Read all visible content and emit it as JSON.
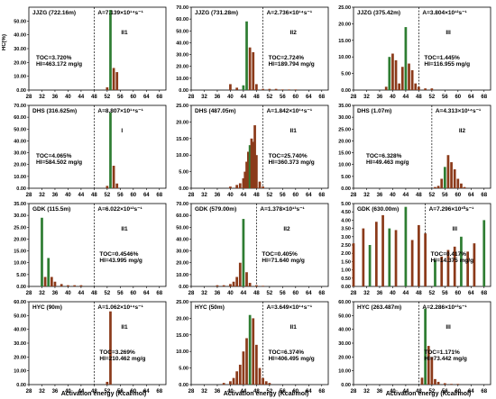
{
  "figure": {
    "ylabel": "HC(%)",
    "xlabel": "Activation energy (Kcal/mol)"
  },
  "chart_data": [
    {
      "type": "bar",
      "panel": "JJZG (722.16m)",
      "A": "A=7.139×10¹⁴s⁻¹",
      "class": "II1",
      "toc": "TOC=3.720%",
      "hi": "HI=463.172 mg/g",
      "yticks": [
        "0.00",
        "10.00",
        "20.00",
        "30.00",
        "40.00",
        "50.00"
      ],
      "ylim": [
        0,
        60
      ],
      "xlim": [
        28,
        70
      ],
      "xticks": [
        "28",
        "32",
        "36",
        "40",
        "44",
        "48",
        "52",
        "56",
        "60",
        "64",
        "68"
      ],
      "cutoff": 48,
      "x": [
        52,
        53,
        54,
        55
      ],
      "values": [
        2,
        58,
        16,
        13
      ],
      "colors": [
        "#8b3a1a",
        "#2e7d32",
        "#8b3a1a",
        "#8b3a1a"
      ]
    },
    {
      "type": "bar",
      "panel": "JJZG (731.28m)",
      "A": "A=2.736×10¹⁴s⁻¹",
      "class": "II2",
      "toc": "TOC=2.724%",
      "hi": "HI=189.794 mg/g",
      "yticks": [
        "0.00",
        "10.00",
        "20.00",
        "30.00",
        "40.00",
        "50.00",
        "60.00",
        "70.00"
      ],
      "ylim": [
        0,
        70
      ],
      "xlim": [
        28,
        70
      ],
      "xticks": [
        "28",
        "32",
        "36",
        "40",
        "44",
        "48",
        "52",
        "56",
        "60",
        "64",
        "68"
      ],
      "cutoff": 50,
      "x": [
        40,
        42,
        44,
        45,
        46,
        47,
        48,
        50,
        52,
        54,
        56,
        58,
        60
      ],
      "values": [
        5,
        2,
        4,
        58,
        36,
        32,
        5,
        1,
        1,
        1,
        0.5,
        0.5,
        0.5
      ],
      "colors": [
        "#8b3a1a",
        "#8b3a1a",
        "#2e7d32",
        "#2e7d32",
        "#8b3a1a",
        "#8b3a1a",
        "#8b3a1a",
        "#8b3a1a",
        "#8b3a1a",
        "#8b3a1a",
        "#8b3a1a",
        "#8b3a1a",
        "#8b3a1a"
      ]
    },
    {
      "type": "bar",
      "panel": "JJZG (375.42m)",
      "A": "A=3.804×10¹²s⁻¹",
      "class": "III",
      "toc": "TOC=1.445%",
      "hi": "HI=116.955 mg/g",
      "yticks": [
        "0.00",
        "5.00",
        "10.00",
        "15.00",
        "20.00",
        "25.00"
      ],
      "ylim": [
        0,
        25
      ],
      "xlim": [
        28,
        70
      ],
      "xticks": [
        "28",
        "32",
        "36",
        "40",
        "44",
        "48",
        "52",
        "56",
        "60",
        "64",
        "68"
      ],
      "cutoff": 48,
      "x": [
        38,
        39,
        40,
        41,
        42,
        43,
        44,
        45,
        46,
        47,
        48,
        50,
        52
      ],
      "values": [
        1,
        10,
        11,
        9,
        2,
        7,
        19,
        8,
        6,
        2,
        1,
        0.5,
        0.5
      ],
      "colors": [
        "#8b3a1a",
        "#2e7d32",
        "#8b3a1a",
        "#8b3a1a",
        "#8b3a1a",
        "#8b3a1a",
        "#2e7d32",
        "#8b3a1a",
        "#8b3a1a",
        "#8b3a1a",
        "#8b3a1a",
        "#8b3a1a",
        "#8b3a1a"
      ]
    },
    {
      "type": "bar",
      "panel": "DHS (316.625m)",
      "A": "A=8.807×10¹⁴s⁻¹",
      "class": "I",
      "toc": "TOC=4.065%",
      "hi": "HI=584.502 mg/g",
      "yticks": [
        "0.00",
        "10.00",
        "20.00",
        "30.00",
        "40.00",
        "50.00",
        "60.00",
        "70.00"
      ],
      "ylim": [
        0,
        70
      ],
      "xlim": [
        28,
        70
      ],
      "xticks": [
        "28",
        "32",
        "36",
        "40",
        "44",
        "48",
        "52",
        "56",
        "60",
        "64",
        "68"
      ],
      "cutoff": 48,
      "x": [
        52,
        53,
        54,
        55
      ],
      "values": [
        2,
        64,
        19,
        4
      ],
      "colors": [
        "#8b3a1a",
        "#2e7d32",
        "#8b3a1a",
        "#8b3a1a"
      ]
    },
    {
      "type": "bar",
      "panel": "DHS (487.05m)",
      "A": "A=1.842×10¹⁴s⁻¹",
      "class": "II1",
      "toc": "TOC=25.740%",
      "hi": "HI=360.373 mg/g",
      "yticks": [
        "0.00",
        "5.00",
        "10.00",
        "15.00",
        "20.00",
        "25.00"
      ],
      "ylim": [
        0,
        25
      ],
      "xlim": [
        28,
        70
      ],
      "xticks": [
        "28",
        "32",
        "36",
        "40",
        "44",
        "48",
        "52",
        "56",
        "60",
        "64",
        "68"
      ],
      "cutoff": 50,
      "x": [
        40,
        42,
        43,
        44,
        44.5,
        45,
        45.5,
        46,
        46.5,
        47,
        47.5,
        48,
        49,
        50
      ],
      "values": [
        0.5,
        1,
        1.5,
        3,
        5,
        8,
        11,
        13,
        15,
        14,
        19,
        10,
        2,
        0.5
      ],
      "colors": [
        "#8b3a1a",
        "#8b3a1a",
        "#8b3a1a",
        "#8b3a1a",
        "#8b3a1a",
        "#8b3a1a",
        "#8b3a1a",
        "#2e7d32",
        "#8b3a1a",
        "#8b3a1a",
        "#8b3a1a",
        "#8b3a1a",
        "#8b3a1a",
        "#8b3a1a"
      ]
    },
    {
      "type": "bar",
      "panel": "DHS (1.07m)",
      "A": "A=4.313×10¹⁴s⁻¹",
      "class": "II2",
      "toc": "TOC=6.328%",
      "hi": "HI=49.463 mg/g",
      "yticks": [
        "0.00",
        "5.00",
        "10.00",
        "15.00",
        "20.00",
        "25.00",
        "30.00",
        "35.00"
      ],
      "ylim": [
        0,
        35
      ],
      "xlim": [
        28,
        70
      ],
      "xticks": [
        "28",
        "32",
        "36",
        "40",
        "44",
        "48",
        "52",
        "56",
        "60",
        "64",
        "68"
      ],
      "cutoff": 52,
      "x": [
        53,
        54,
        55,
        56,
        57,
        58,
        59,
        60,
        61,
        62
      ],
      "values": [
        0.5,
        1,
        4,
        9,
        14,
        11,
        8,
        4,
        2,
        0.5
      ],
      "colors": [
        "#8b3a1a",
        "#8b3a1a",
        "#8b3a1a",
        "#2e7d32",
        "#8b3a1a",
        "#8b3a1a",
        "#8b3a1a",
        "#8b3a1a",
        "#8b3a1a",
        "#8b3a1a"
      ]
    },
    {
      "type": "bar",
      "panel": "GDK (115.5m)",
      "A": "A=6.022×10¹²s⁻¹",
      "class": "II1",
      "toc": "TOC=0.4546%",
      "hi": "HI=43.995 mg/g",
      "yticks": [
        "0.00",
        "5.00",
        "10.00",
        "15.00",
        "20.00",
        "25.00",
        "30.00",
        "35.00"
      ],
      "ylim": [
        0,
        35
      ],
      "xlim": [
        28,
        70
      ],
      "xticks": [
        "28",
        "32",
        "36",
        "40",
        "44",
        "48",
        "52",
        "56",
        "60",
        "64",
        "68"
      ],
      "cutoff": 48,
      "x": [
        32,
        33,
        34,
        35,
        36,
        38,
        40,
        42,
        44
      ],
      "values": [
        29,
        4,
        12,
        4,
        2,
        1,
        0.5,
        0.5,
        0.5
      ],
      "colors": [
        "#2e7d32",
        "#8b3a1a",
        "#2e7d32",
        "#8b3a1a",
        "#8b3a1a",
        "#8b3a1a",
        "#8b3a1a",
        "#8b3a1a",
        "#8b3a1a"
      ]
    },
    {
      "type": "bar",
      "panel": "GDK (579.00m)",
      "A": "A=1.378×10¹³s⁻¹",
      "class": "II2",
      "toc": "TOC=0.405%",
      "hi": "HI=71.640 mg/g",
      "yticks": [
        "0.00",
        "10.00",
        "20.00",
        "30.00",
        "40.00",
        "50.00",
        "60.00",
        "70.00"
      ],
      "ylim": [
        0,
        70
      ],
      "xlim": [
        28,
        70
      ],
      "xticks": [
        "28",
        "32",
        "36",
        "40",
        "44",
        "48",
        "52",
        "56",
        "60",
        "64",
        "68"
      ],
      "cutoff": 48,
      "x": [
        36,
        38,
        40,
        41,
        42,
        43,
        44,
        45,
        46,
        48,
        50
      ],
      "values": [
        1,
        1,
        2,
        4,
        8,
        20,
        57,
        12,
        3,
        1,
        0.5
      ],
      "colors": [
        "#8b3a1a",
        "#8b3a1a",
        "#8b3a1a",
        "#8b3a1a",
        "#8b3a1a",
        "#8b3a1a",
        "#2e7d32",
        "#8b3a1a",
        "#8b3a1a",
        "#8b3a1a",
        "#8b3a1a"
      ]
    },
    {
      "type": "bar",
      "panel": "GDK (630.00m)",
      "A": "A=7.296×10¹⁰s⁻¹",
      "class": "III",
      "toc": "TOC=0.417%",
      "hi": "HI=14.375 mg/g",
      "yticks": [
        "0.00",
        "0.50",
        "1.00",
        "1.50",
        "2.00",
        "2.50",
        "3.00",
        "3.50",
        "4.00",
        "4.50",
        "5.00"
      ],
      "ylim": [
        0,
        5
      ],
      "xlim": [
        28,
        70
      ],
      "xticks": [
        "28",
        "32",
        "36",
        "40",
        "44",
        "48",
        "52",
        "56",
        "60",
        "64",
        "68"
      ],
      "cutoff": 50,
      "x": [
        28,
        31,
        33,
        35,
        37,
        39,
        41,
        44,
        46,
        48,
        50,
        53,
        55,
        57,
        59,
        61,
        63,
        65,
        68
      ],
      "values": [
        2.6,
        3.5,
        2.5,
        3.9,
        4.3,
        3.5,
        3.4,
        4.8,
        2.8,
        3.7,
        3.2,
        1.6,
        1.8,
        2.2,
        2.4,
        3.0,
        2.1,
        2.6,
        4.0
      ],
      "colors": [
        "#8b3a1a",
        "#8b3a1a",
        "#2e7d32",
        "#8b3a1a",
        "#8b3a1a",
        "#2e7d32",
        "#8b3a1a",
        "#2e7d32",
        "#8b3a1a",
        "#8b3a1a",
        "#8b3a1a",
        "#2e7d32",
        "#8b3a1a",
        "#8b3a1a",
        "#8b3a1a",
        "#2e7d32",
        "#8b3a1a",
        "#8b3a1a",
        "#2e7d32"
      ]
    },
    {
      "type": "bar",
      "panel": "HYC (90m)",
      "A": "A=1.062×10¹⁴s⁻¹",
      "class": "II1",
      "toc": "TOC=3.269%",
      "hi": "HI=210.462 mg/g",
      "yticks": [
        "0.00",
        "10.00",
        "20.00",
        "30.00",
        "40.00",
        "50.00",
        "60.00"
      ],
      "ylim": [
        0,
        60
      ],
      "xlim": [
        28,
        70
      ],
      "xticks": [
        "28",
        "32",
        "36",
        "40",
        "44",
        "48",
        "52",
        "56",
        "60",
        "64",
        "68"
      ],
      "cutoff": 48,
      "x": [
        52,
        53
      ],
      "values": [
        2,
        53
      ],
      "colors": [
        "#8b3a1a",
        "#8b3a1a"
      ]
    },
    {
      "type": "bar",
      "panel": "HYC (50m)",
      "A": "A=3.649×10¹⁴s⁻¹",
      "class": "II1",
      "toc": "TOC=6.374%",
      "hi": "HI=406.495 mg/g",
      "yticks": [
        "0.00",
        "5.00",
        "10.00",
        "15.00",
        "20.00",
        "25.00"
      ],
      "ylim": [
        0,
        25
      ],
      "xlim": [
        28,
        70
      ],
      "xticks": [
        "28",
        "32",
        "36",
        "40",
        "44",
        "48",
        "52",
        "56",
        "60",
        "64",
        "68"
      ],
      "cutoff": 50,
      "x": [
        38,
        40,
        41,
        42,
        43,
        44,
        45,
        46,
        47,
        48,
        49,
        50,
        51,
        52
      ],
      "values": [
        0.5,
        1,
        2,
        4,
        6,
        10,
        14,
        21,
        20,
        12,
        5,
        2,
        1,
        0.5
      ],
      "colors": [
        "#8b3a1a",
        "#8b3a1a",
        "#8b3a1a",
        "#8b3a1a",
        "#8b3a1a",
        "#8b3a1a",
        "#8b3a1a",
        "#2e7d32",
        "#8b3a1a",
        "#8b3a1a",
        "#8b3a1a",
        "#8b3a1a",
        "#8b3a1a",
        "#8b3a1a"
      ]
    },
    {
      "type": "bar",
      "panel": "HYC (263.487m)",
      "A": "A=2.286×10¹³s⁻¹",
      "class": "III",
      "toc": "TOC=1.171%",
      "hi": "HI=73.442 mg/g",
      "yticks": [
        "0.00",
        "10.00",
        "20.00",
        "30.00",
        "40.00",
        "50.00",
        "60.00"
      ],
      "ylim": [
        0,
        60
      ],
      "xlim": [
        28,
        70
      ],
      "xticks": [
        "28",
        "32",
        "36",
        "40",
        "44",
        "48",
        "52",
        "56",
        "60",
        "64",
        "68"
      ],
      "cutoff": 48,
      "x": [
        49,
        50,
        51,
        52,
        53,
        54,
        56,
        58,
        60
      ],
      "values": [
        5,
        55,
        28,
        20,
        4,
        2,
        1,
        0.5,
        0.5
      ],
      "colors": [
        "#8b3a1a",
        "#2e7d32",
        "#8b3a1a",
        "#8b3a1a",
        "#8b3a1a",
        "#8b3a1a",
        "#8b3a1a",
        "#8b3a1a",
        "#8b3a1a"
      ]
    }
  ]
}
